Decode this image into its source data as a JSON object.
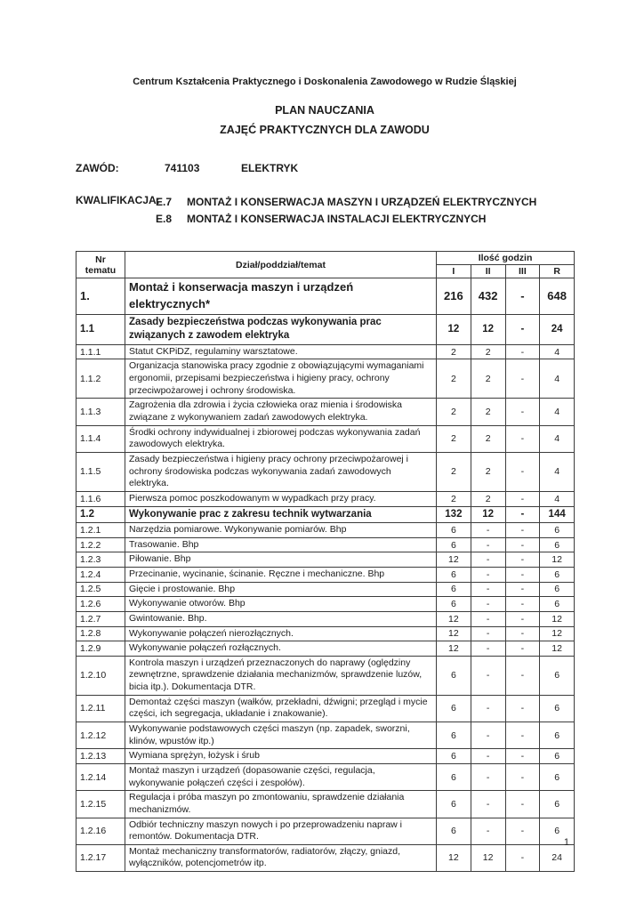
{
  "header": {
    "institution": "Centrum Kształcenia Praktycznego i Doskonalenia Zawodowego w Rudzie Śląskiej",
    "title_line1": "PLAN NAUCZANIA",
    "title_line2": "ZAJĘĆ PRAKTYCZNYCH DLA ZAWODU"
  },
  "meta": {
    "zawod_label": "ZAWÓD:",
    "zawod_code": "741103",
    "zawod_name": "ELEKTRYK",
    "kwalifikacja_label": "KWALIFIKACJA:",
    "kwalifikacje": [
      {
        "code": "E.7",
        "name": "MONTAŻ I KONSERWACJA MASZYN I URZĄDZEŃ ELEKTRYCZNYCH"
      },
      {
        "code": "E.8",
        "name": "MONTAŻ I KONSERWACJA INSTALACJI ELEKTRYCZNYCH"
      }
    ]
  },
  "table": {
    "columns": {
      "nr": "Nr tematu",
      "temat": "Dział/poddział/temat",
      "hours_group": "Ilość godzin",
      "hours": [
        "I",
        "II",
        "III",
        "R"
      ]
    },
    "rows": [
      {
        "style": "section",
        "nr": "1.",
        "temat": "Montaż i konserwacja maszyn i urządzeń elektrycznych*",
        "hours": [
          "216",
          "432",
          "-",
          "648"
        ]
      },
      {
        "style": "subsection",
        "nr": "1.1",
        "temat": "Zasady bezpieczeństwa podczas wykonywania prac związanych z zawodem elektryka",
        "hours": [
          "12",
          "12",
          "-",
          "24"
        ]
      },
      {
        "style": "normal",
        "nr": "1.1.1",
        "temat": "Statut CKPiDZ, regulaminy warsztatowe.",
        "hours": [
          "2",
          "2",
          "-",
          "4"
        ]
      },
      {
        "style": "normal",
        "nr": "1.1.2",
        "temat": "Organizacja stanowiska pracy zgodnie z obowiązującymi wymaganiami ergonomii, przepisami bezpieczeństwa i higieny pracy, ochrony przeciwpożarowej i ochrony środowiska.",
        "hours": [
          "2",
          "2",
          "-",
          "4"
        ]
      },
      {
        "style": "normal",
        "nr": "1.1.3",
        "temat": "Zagrożenia dla zdrowia i życia człowieka oraz mienia i środowiska związane z wykonywaniem zadań zawodowych elektryka.",
        "hours": [
          "2",
          "2",
          "-",
          "4"
        ]
      },
      {
        "style": "normal",
        "nr": "1.1.4",
        "temat": "Środki ochrony indywidualnej i zbiorowej podczas wykonywania zadań zawodowych elektryka.",
        "hours": [
          "2",
          "2",
          "-",
          "4"
        ]
      },
      {
        "style": "normal",
        "nr": "1.1.5",
        "temat": "Zasady bezpieczeństwa i higieny pracy ochrony przeciwpożarowej i ochrony środowiska podczas wykonywania zadań zawodowych elektryka.",
        "hours": [
          "2",
          "2",
          "-",
          "4"
        ]
      },
      {
        "style": "normal",
        "nr": "1.1.6",
        "temat": "Pierwsza pomoc poszkodowanym w wypadkach przy pracy.",
        "hours": [
          "2",
          "2",
          "-",
          "4"
        ]
      },
      {
        "style": "subsection",
        "nr": "1.2",
        "temat": "Wykonywanie prac z zakresu technik wytwarzania",
        "hours": [
          "132",
          "12",
          "-",
          "144"
        ]
      },
      {
        "style": "normal",
        "nr": "1.2.1",
        "temat": "Narzędzia pomiarowe. Wykonywanie pomiarów. Bhp",
        "hours": [
          "6",
          "-",
          "-",
          "6"
        ]
      },
      {
        "style": "normal",
        "nr": "1.2.2",
        "temat": "Trasowanie. Bhp",
        "hours": [
          "6",
          "-",
          "-",
          "6"
        ]
      },
      {
        "style": "normal",
        "nr": "1.2.3",
        "temat": "Piłowanie. Bhp",
        "hours": [
          "12",
          "-",
          "-",
          "12"
        ]
      },
      {
        "style": "normal",
        "nr": "1.2.4",
        "temat": "Przecinanie, wycinanie, ścinanie. Ręczne i mechaniczne. Bhp",
        "hours": [
          "6",
          "-",
          "-",
          "6"
        ]
      },
      {
        "style": "normal",
        "nr": "1.2.5",
        "temat": "Gięcie i prostowanie. Bhp",
        "hours": [
          "6",
          "-",
          "-",
          "6"
        ]
      },
      {
        "style": "normal",
        "nr": "1.2.6",
        "temat": "Wykonywanie otworów. Bhp",
        "hours": [
          "6",
          "-",
          "-",
          "6"
        ]
      },
      {
        "style": "normal",
        "nr": "1.2.7",
        "temat": "Gwintowanie. Bhp.",
        "hours": [
          "12",
          "-",
          "-",
          "12"
        ]
      },
      {
        "style": "normal",
        "nr": "1.2.8",
        "temat": "Wykonywanie połączeń nierozłącznych.",
        "hours": [
          "12",
          "-",
          "-",
          "12"
        ]
      },
      {
        "style": "normal",
        "nr": "1.2.9",
        "temat": "Wykonywanie połączeń rozłącznych.",
        "hours": [
          "12",
          "-",
          "-",
          "12"
        ]
      },
      {
        "style": "normal",
        "nr": "1.2.10",
        "temat": "Kontrola maszyn i urządzeń przeznaczonych do naprawy (oględziny zewnętrzne, sprawdzenie działania mechanizmów, sprawdzenie luzów, bicia itp.). Dokumentacja DTR.",
        "hours": [
          "6",
          "-",
          "-",
          "6"
        ]
      },
      {
        "style": "normal",
        "nr": "1.2.11",
        "temat": "Demontaż części maszyn (wałków, przekładni, dźwigni; przegląd i mycie części, ich segregacja, układanie i znakowanie).",
        "hours": [
          "6",
          "-",
          "-",
          "6"
        ]
      },
      {
        "style": "normal",
        "nr": "1.2.12",
        "temat": "Wykonywanie podstawowych części maszyn (np. zapadek, sworzni, klinów, wpustów itp.)",
        "hours": [
          "6",
          "-",
          "-",
          "6"
        ]
      },
      {
        "style": "normal",
        "nr": "1.2.13",
        "temat": "Wymiana sprężyn, łożysk i śrub",
        "hours": [
          "6",
          "-",
          "-",
          "6"
        ]
      },
      {
        "style": "normal",
        "nr": "1.2.14",
        "temat": "Montaż maszyn i urządzeń (dopasowanie części, regulacja, wykonywanie połączeń części i zespołów).",
        "hours": [
          "6",
          "-",
          "-",
          "6"
        ]
      },
      {
        "style": "normal",
        "nr": "1.2.15",
        "temat": "Regulacja i próba maszyn po zmontowaniu, sprawdzenie działania mechanizmów.",
        "hours": [
          "6",
          "-",
          "-",
          "6"
        ]
      },
      {
        "style": "normal",
        "nr": "1.2.16",
        "temat": "Odbiór techniczny maszyn nowych i po przeprowadzeniu napraw i remontów. Dokumentacja DTR.",
        "hours": [
          "6",
          "-",
          "-",
          "6"
        ]
      },
      {
        "style": "normal",
        "nr": "1.2.17",
        "temat": "Montaż mechaniczny transformatorów, radiatorów, złączy, gniazd, wyłączników, potencjometrów itp.",
        "hours": [
          "12",
          "12",
          "-",
          "24"
        ]
      }
    ]
  },
  "footer": {
    "page_number": "1"
  }
}
